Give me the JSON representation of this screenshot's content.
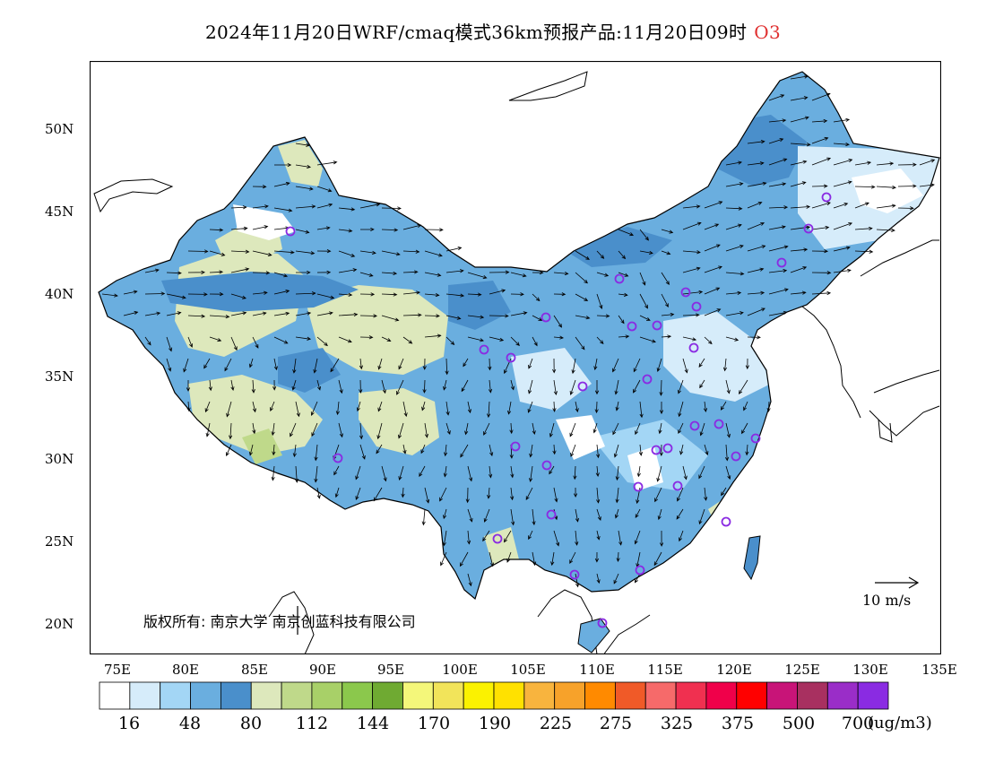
{
  "title": {
    "main": "2024年11月20日WRF/cmaq模式36km预报产品:11月20日09时",
    "species": "O3"
  },
  "axes": {
    "lat_labels": [
      "50N",
      "45N",
      "40N",
      "35N",
      "30N",
      "25N",
      "20N"
    ],
    "lon_labels": [
      "75E",
      "80E",
      "85E",
      "90E",
      "95E",
      "100E",
      "105E",
      "110E",
      "115E",
      "120E",
      "125E",
      "130E",
      "135E"
    ]
  },
  "legend": {
    "colors": [
      "#ffffff",
      "#d6ecfa",
      "#a3d6f5",
      "#6aaedf",
      "#4a8fcb",
      "#dde8bc",
      "#bfd98a",
      "#a8d068",
      "#8bc84c",
      "#6faa32",
      "#f4f77a",
      "#f2e45a",
      "#fbf200",
      "#ffe100",
      "#f8b43e",
      "#f7a22a",
      "#ff8a00",
      "#f05a28",
      "#f66a6a",
      "#f03050",
      "#f0004a",
      "#ff0000",
      "#c81478",
      "#a83060",
      "#9a2dc8",
      "#8a2be2"
    ],
    "tick_labels": [
      "16",
      "48",
      "80",
      "112",
      "144",
      "170",
      "190",
      "225",
      "275",
      "325",
      "375",
      "500",
      "700"
    ],
    "unit": "(ug/m3)"
  },
  "copyright": "版权所有: 南京大学  南京创蓝科技有限公司",
  "wind_reference": "10 m/s",
  "colors": {
    "station_marker": "#8a2be2",
    "title_species": "#e03030"
  }
}
